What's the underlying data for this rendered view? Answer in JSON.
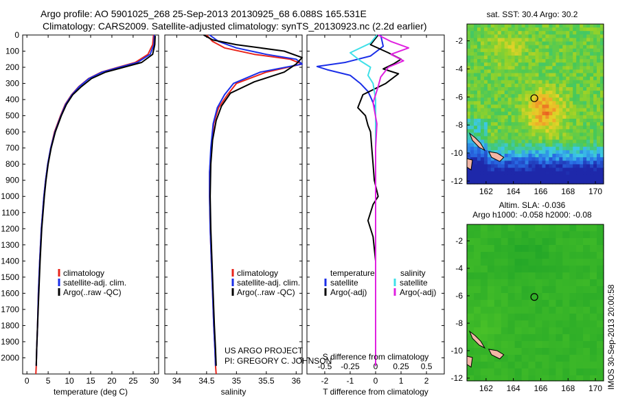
{
  "title": {
    "line1": "Argo profile: AO 5901025_268 25-Sep-2013 20130925_68 6.088S 165.531E",
    "line2": "Climatology: CARS2009. Satellite-adjusted climatology: synTS_20130923.nc (2.2d earlier)"
  },
  "colors": {
    "climatology": "#e8231a",
    "satellite": "#1a2ee8",
    "argo": "#000000",
    "sat_salinity": "#3fe0e8",
    "argo_salinity": "#e020e0",
    "land": "#f2b6a6"
  },
  "project_note": {
    "line1": "US ARGO PROJECT",
    "line2": "PI: GREGORY C. JOHNSON"
  },
  "timestamp": "IMOS 30-Sep-2013 20:00:58",
  "chart_data": [
    {
      "type": "line",
      "name": "temperature-profile",
      "xlabel": "temperature (deg C)",
      "ylabel": "",
      "xlim": [
        -1,
        31
      ],
      "ylim": [
        2100,
        0
      ],
      "xticks": [
        0,
        5,
        10,
        15,
        20,
        25,
        30
      ],
      "xtick_labels": [
        "0",
        "5",
        "10",
        "15",
        "20",
        "25",
        "30"
      ],
      "yticks": [
        0,
        100,
        200,
        300,
        400,
        500,
        600,
        700,
        800,
        900,
        1000,
        1100,
        1200,
        1300,
        1400,
        1500,
        1600,
        1700,
        1800,
        1900,
        2000
      ],
      "ytick_labels": [
        "0",
        "100",
        "200",
        "300",
        "400",
        "500",
        "600",
        "700",
        "800",
        "900",
        "1000",
        "1100",
        "1200",
        "1300",
        "1400",
        "1500",
        "1600",
        "1700",
        "1800",
        "1900",
        "2000"
      ],
      "legend": [
        "climatology",
        "satellite-adj. clim.",
        "Argo(..raw -QC)"
      ],
      "series": [
        {
          "name": "climatology",
          "color": "#e8231a",
          "x": [
            29.8,
            29.6,
            28.5,
            25.5,
            21.5,
            17.5,
            14.5,
            12.2,
            10.5,
            9.0,
            7.9,
            6.5,
            5.6,
            4.9,
            4.4,
            4.0,
            3.4,
            3.0,
            2.7,
            2.5,
            2.3,
            2.2,
            2.1
          ],
          "y": [
            0,
            60,
            120,
            170,
            200,
            230,
            270,
            320,
            370,
            430,
            500,
            600,
            700,
            800,
            900,
            1000,
            1200,
            1400,
            1600,
            1800,
            1950,
            2050,
            2100
          ]
        },
        {
          "name": "satellite-adj. clim.",
          "color": "#1a2ee8",
          "x": [
            30.0,
            29.9,
            29.0,
            26.0,
            21.8,
            17.7,
            14.6,
            12.3,
            10.6,
            9.1,
            8.0,
            6.6,
            5.6,
            4.9,
            4.4,
            4.0,
            3.4,
            3.0,
            2.7,
            2.5,
            2.3,
            2.2
          ],
          "y": [
            0,
            60,
            120,
            170,
            200,
            230,
            270,
            320,
            370,
            430,
            500,
            600,
            700,
            800,
            900,
            1000,
            1200,
            1400,
            1600,
            1800,
            1950,
            2050
          ]
        },
        {
          "name": "Argo(..raw -QC)",
          "color": "#000000",
          "x": [
            30.2,
            30.1,
            29.6,
            27.0,
            22.8,
            18.5,
            15.2,
            12.8,
            10.8,
            9.3,
            8.1,
            6.7,
            5.7,
            5.0,
            4.5,
            4.1,
            3.5,
            3.1,
            2.8,
            2.5,
            2.3,
            2.2
          ],
          "y": [
            5,
            60,
            120,
            170,
            200,
            230,
            270,
            320,
            370,
            430,
            500,
            600,
            700,
            800,
            900,
            1000,
            1200,
            1400,
            1600,
            1800,
            1950,
            2050
          ]
        }
      ]
    },
    {
      "type": "line",
      "name": "salinity-profile",
      "xlabel": "salinity",
      "ylabel": "",
      "xlim": [
        33.8,
        36.1
      ],
      "ylim": [
        2100,
        0
      ],
      "xticks": [
        34,
        34.5,
        35,
        35.5,
        36
      ],
      "xtick_labels": [
        "34",
        "34.5",
        "35",
        "35.5",
        "36"
      ],
      "legend": [
        "climatology",
        "satellite-adj. clim.",
        "Argo(..raw -QC)"
      ],
      "series": [
        {
          "name": "climatology",
          "color": "#e8231a",
          "x": [
            34.5,
            34.6,
            34.8,
            35.3,
            35.9,
            36.1,
            35.5,
            35.0,
            34.85,
            34.7,
            34.62,
            34.58,
            34.55,
            34.55,
            34.56,
            34.58,
            34.6,
            34.62,
            34.64,
            34.65,
            34.66
          ],
          "y": [
            0,
            40,
            80,
            120,
            150,
            180,
            230,
            300,
            370,
            450,
            550,
            700,
            850,
            1000,
            1200,
            1400,
            1600,
            1800,
            1950,
            2050,
            2100
          ]
        },
        {
          "name": "satellite-adj. clim.",
          "color": "#1a2ee8",
          "x": [
            34.55,
            34.7,
            35.0,
            35.5,
            36.0,
            36.1,
            35.4,
            34.95,
            34.8,
            34.68,
            34.61,
            34.57,
            34.55,
            34.55,
            34.56,
            34.58,
            34.6,
            34.62,
            34.64,
            34.65
          ],
          "y": [
            0,
            40,
            80,
            120,
            150,
            180,
            230,
            300,
            370,
            450,
            550,
            700,
            850,
            1000,
            1200,
            1400,
            1600,
            1800,
            1950,
            2050
          ]
        },
        {
          "name": "Argo(..raw -QC)",
          "color": "#000000",
          "x": [
            34.45,
            34.6,
            35.0,
            35.4,
            35.8,
            36.1,
            36.0,
            35.8,
            35.3,
            34.9,
            34.75,
            34.66,
            34.6,
            34.57,
            34.56,
            34.57,
            34.59,
            34.61,
            34.63,
            34.65,
            34.66
          ],
          "y": [
            0,
            30,
            60,
            80,
            100,
            140,
            180,
            230,
            290,
            360,
            440,
            530,
            650,
            800,
            1000,
            1200,
            1400,
            1600,
            1800,
            1950,
            2050
          ]
        }
      ]
    },
    {
      "type": "line",
      "name": "difference-profile",
      "xlabel": "T difference from climatology",
      "xlabel2": "S difference from climatology",
      "xlim": [
        -2.7,
        2.7
      ],
      "ylim": [
        2100,
        0
      ],
      "xticks": [
        -2,
        -1,
        0,
        1,
        2
      ],
      "xtick_labels": [
        "-2",
        "-1",
        "0",
        "1",
        "2"
      ],
      "xticks2": [
        -0.5,
        -0.25,
        0,
        0.25,
        0.5
      ],
      "xtick_labels2": [
        "-0.5",
        "-0.25",
        "0",
        "0.25",
        "0.5"
      ],
      "s_scale_factor": 4,
      "legend_titles": [
        "temperature",
        "salinity"
      ],
      "legend": [
        "satellite",
        "Argo(-adj)",
        "satellite",
        "Argo(-adj)"
      ],
      "series": [
        {
          "name": "temperature satellite",
          "color": "#1a2ee8",
          "x": [
            0.2,
            0.3,
            -0.2,
            -1.2,
            -2.3,
            -1.9,
            -1.0,
            -0.6,
            -0.3,
            -0.15,
            0.0,
            0.0,
            0.0,
            0.0,
            0.0,
            0.0
          ],
          "y": [
            0,
            70,
            130,
            170,
            195,
            215,
            250,
            300,
            350,
            400,
            460,
            600,
            900,
            1400,
            1800,
            2050
          ]
        },
        {
          "name": "temperature Argo(-adj)",
          "color": "#000000",
          "x": [
            0.1,
            -0.2,
            0.5,
            1.0,
            0.7,
            0.3,
            0.9,
            0.4,
            -0.5,
            -0.7,
            -0.4,
            -0.3,
            -0.2,
            -0.15,
            -0.1,
            -0.05,
            0.1,
            -0.1,
            -0.3,
            -0.1,
            0.0,
            0.0
          ],
          "y": [
            0,
            60,
            110,
            150,
            180,
            210,
            240,
            300,
            370,
            450,
            500,
            560,
            600,
            700,
            800,
            900,
            1000,
            1050,
            1150,
            1250,
            1400,
            2050
          ]
        },
        {
          "name": "salinity satellite",
          "color": "#3fe0e8",
          "x": [
            0.05,
            -0.2,
            -1.0,
            -0.6,
            -0.2,
            -0.3,
            -0.1,
            0.0,
            0.0,
            0.0
          ],
          "y": [
            0,
            50,
            110,
            160,
            200,
            250,
            300,
            400,
            800,
            2050
          ]
        },
        {
          "name": "salinity Argo(-adj)",
          "color": "#e020e0",
          "x": [
            0.1,
            0.6,
            1.3,
            0.6,
            1.1,
            0.5,
            0.2,
            0.1,
            -0.1,
            0.05,
            0.0,
            0.0
          ],
          "y": [
            0,
            40,
            80,
            120,
            160,
            200,
            260,
            320,
            420,
            550,
            700,
            2050
          ]
        }
      ]
    },
    {
      "type": "heatmap",
      "name": "sst-map",
      "title": "sat. SST: 30.4  Argo: 30.2",
      "xlim": [
        160.6,
        170.6
      ],
      "ylim": [
        -12.2,
        -0.8
      ],
      "xticks": [
        162,
        164,
        166,
        168,
        170
      ],
      "xtick_labels": [
        "162",
        "164",
        "166",
        "168",
        "170"
      ],
      "yticks": [
        -2,
        -4,
        -6,
        -8,
        -10,
        -12
      ],
      "ytick_labels": [
        "-2",
        "-4",
        "-6",
        "-8",
        "-10",
        "-12"
      ],
      "float_position": {
        "lon": 165.531,
        "lat": -6.088
      },
      "land": [
        {
          "name": "bougainville",
          "lon": [
            160.8,
            161.2,
            161.6,
            161.9,
            161.5,
            161.0
          ],
          "lat": [
            -8.6,
            -8.9,
            -9.3,
            -9.8,
            -9.6,
            -9.1
          ]
        },
        {
          "name": "guadalcanal",
          "lon": [
            162.2,
            162.8,
            163.3,
            163.0,
            162.4
          ],
          "lat": [
            -9.9,
            -10.0,
            -10.3,
            -10.6,
            -10.3
          ]
        },
        {
          "name": "makira",
          "lon": [
            160.6,
            161.0,
            160.9,
            160.6
          ],
          "lat": [
            -10.4,
            -10.5,
            -11.2,
            -11.0
          ]
        }
      ]
    },
    {
      "type": "heatmap",
      "name": "sla-map",
      "title": "Altim. SLA: -0.036",
      "title2": "Argo h1000: -0.058 h2000: -0.08",
      "xlim": [
        160.6,
        170.6
      ],
      "ylim": [
        -12.2,
        -0.8
      ],
      "xticks": [
        162,
        164,
        166,
        168,
        170
      ],
      "xtick_labels": [
        "162",
        "164",
        "166",
        "168",
        "170"
      ],
      "yticks": [
        -2,
        -4,
        -6,
        -8,
        -10,
        -12
      ],
      "ytick_labels": [
        "-2",
        "-4",
        "-6",
        "-8",
        "-10",
        "-12"
      ],
      "float_position": {
        "lon": 165.531,
        "lat": -6.088
      }
    }
  ]
}
